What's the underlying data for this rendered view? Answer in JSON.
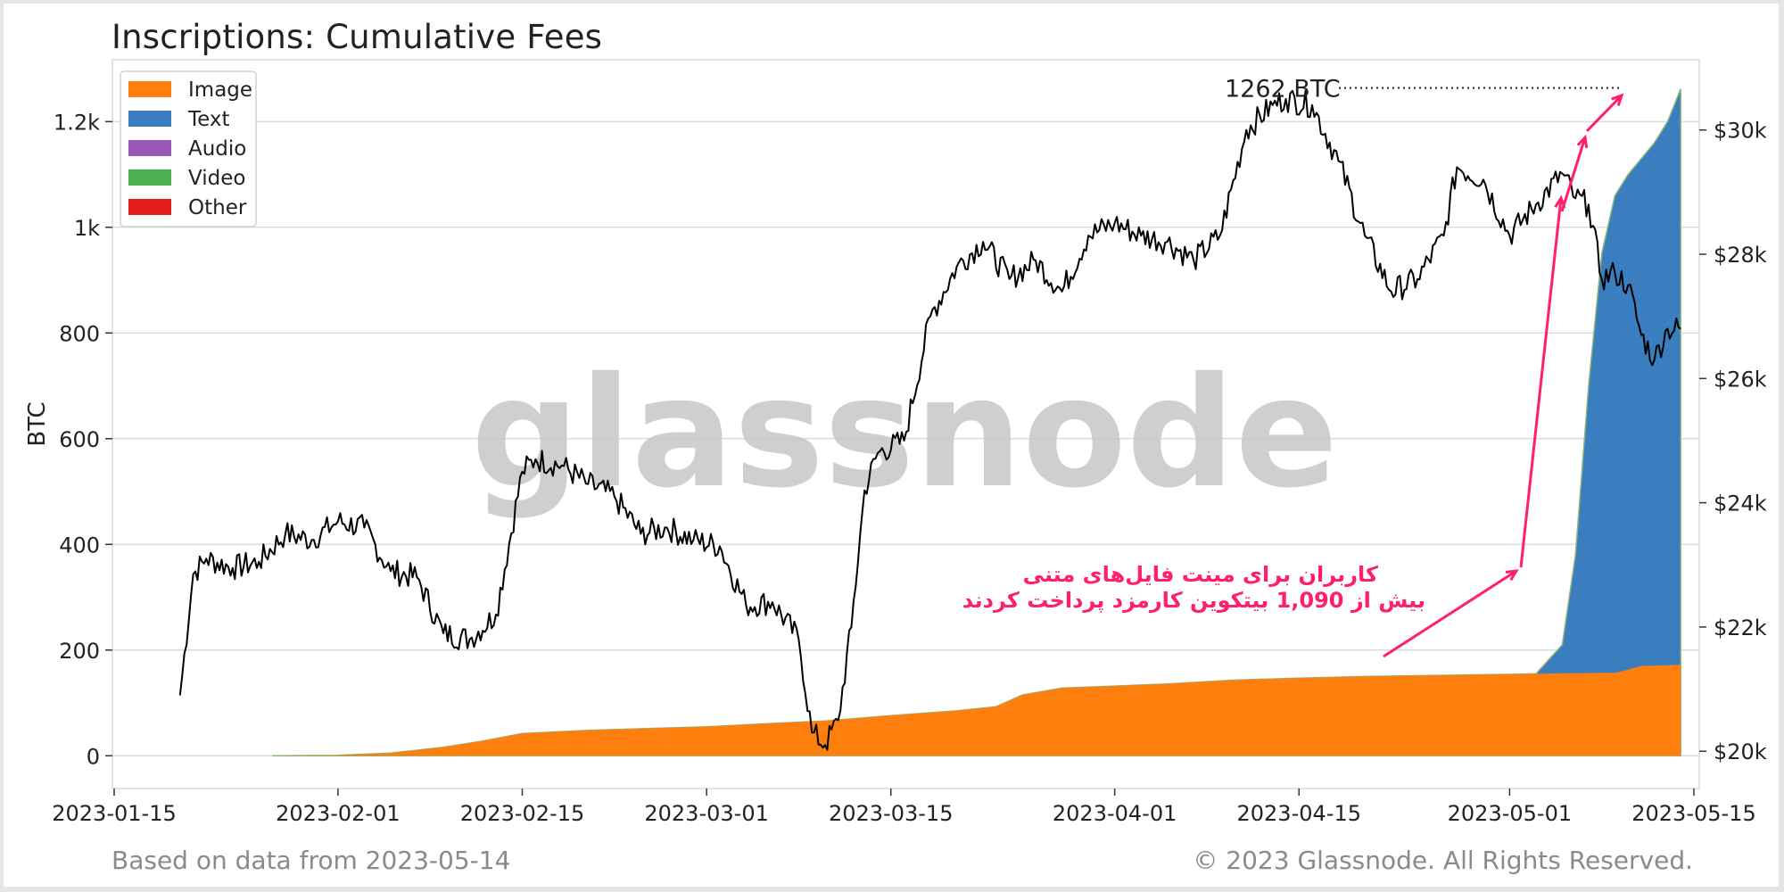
{
  "header": {
    "title": "Inscriptions: Cumulative Fees"
  },
  "footer": {
    "left": "Based on data from 2023-05-14",
    "right": "© 2023 Glassnode. All Rights Reserved."
  },
  "watermark": "glassnode",
  "chart_data": {
    "type": "area",
    "title": "Inscriptions: Cumulative Fees",
    "ylabel": "BTC",
    "ylabel_right": "",
    "ylim": [
      -62,
      1317
    ],
    "ylim_right": [
      19400,
      31130
    ],
    "xlim": [
      "2023-01-15",
      "2023-05-15"
    ],
    "yticks": [
      0,
      200,
      400,
      600,
      800,
      1000,
      1200
    ],
    "yticks_labels": [
      "0",
      "200",
      "400",
      "600",
      "800",
      "1k",
      "1.2k"
    ],
    "yticks_right": [
      20000,
      22000,
      24000,
      26000,
      28000,
      30000
    ],
    "yticks_right_labels": [
      "$20k",
      "$22k",
      "$24k",
      "$26k",
      "$28k",
      "$30k"
    ],
    "xticks": [
      "2023-01-15",
      "2023-02-01",
      "2023-02-15",
      "2023-03-01",
      "2023-03-15",
      "2023-04-01",
      "2023-04-15",
      "2023-05-01",
      "2023-05-15"
    ],
    "grid": "horizontal",
    "legend_position": "top-left",
    "legend": [
      {
        "name": "Image",
        "color": "#ff7f0e"
      },
      {
        "name": "Text",
        "color": "#3a7ebf"
      },
      {
        "name": "Audio",
        "color": "#9b59b6"
      },
      {
        "name": "Video",
        "color": "#4caf50"
      },
      {
        "name": "Other",
        "color": "#e41a1c"
      }
    ],
    "series": [
      {
        "name": "Image",
        "color": "#ff7f0e",
        "x": [
          "2023-01-27",
          "2023-02-01",
          "2023-02-05",
          "2023-02-09",
          "2023-02-12",
          "2023-02-15",
          "2023-02-20",
          "2023-02-25",
          "2023-03-01",
          "2023-03-05",
          "2023-03-10",
          "2023-03-15",
          "2023-03-20",
          "2023-03-23",
          "2023-03-25",
          "2023-03-28",
          "2023-04-01",
          "2023-04-05",
          "2023-04-10",
          "2023-04-15",
          "2023-04-20",
          "2023-04-25",
          "2023-05-01",
          "2023-05-05",
          "2023-05-09",
          "2023-05-10",
          "2023-05-11",
          "2023-05-14"
        ],
        "values": [
          0,
          1,
          5,
          16,
          28,
          42,
          48,
          52,
          55,
          60,
          66,
          76,
          85,
          93,
          115,
          128,
          132,
          136,
          143,
          147,
          150,
          152,
          154,
          156,
          157,
          163,
          170,
          172
        ]
      },
      {
        "name": "Text",
        "color": "#3a7ebf",
        "x": [
          "2023-01-27",
          "2023-02-01",
          "2023-02-05",
          "2023-02-09",
          "2023-02-12",
          "2023-02-15",
          "2023-02-20",
          "2023-02-25",
          "2023-03-01",
          "2023-03-05",
          "2023-03-10",
          "2023-03-15",
          "2023-03-20",
          "2023-03-23",
          "2023-03-25",
          "2023-03-28",
          "2023-04-01",
          "2023-04-05",
          "2023-04-10",
          "2023-04-15",
          "2023-04-20",
          "2023-04-25",
          "2023-04-28",
          "2023-05-01",
          "2023-05-03",
          "2023-05-05",
          "2023-05-06",
          "2023-05-07",
          "2023-05-08",
          "2023-05-09",
          "2023-05-10",
          "2023-05-11",
          "2023-05-12",
          "2023-05-13",
          "2023-05-14"
        ],
        "values": [
          0,
          0,
          0,
          1,
          2,
          3,
          4,
          5,
          6,
          7,
          8,
          10,
          12,
          13,
          12,
          14,
          14,
          16,
          19,
          20,
          22,
          25,
          32,
          50,
          100,
          210,
          380,
          700,
          950,
          1060,
          1100,
          1130,
          1160,
          1200,
          1262
        ]
      },
      {
        "name": "Audio",
        "color": "#9b59b6",
        "x": [],
        "values": []
      },
      {
        "name": "Video",
        "color": "#4caf50",
        "x": [],
        "values": []
      },
      {
        "name": "Other",
        "color": "#e41a1c",
        "x": [],
        "values": []
      },
      {
        "name": "Price",
        "axis": "right",
        "color": "#000000",
        "x": [
          "2023-01-20",
          "2023-01-21",
          "2023-01-22",
          "2023-01-24",
          "2023-01-26",
          "2023-01-28",
          "2023-01-30",
          "2023-02-01",
          "2023-02-03",
          "2023-02-05",
          "2023-02-07",
          "2023-02-09",
          "2023-02-11",
          "2023-02-13",
          "2023-02-15",
          "2023-02-16",
          "2023-02-18",
          "2023-02-20",
          "2023-02-22",
          "2023-02-24",
          "2023-02-26",
          "2023-02-28",
          "2023-03-02",
          "2023-03-04",
          "2023-03-06",
          "2023-03-08",
          "2023-03-09",
          "2023-03-10",
          "2023-03-11",
          "2023-03-12",
          "2023-03-13",
          "2023-03-14",
          "2023-03-16",
          "2023-03-18",
          "2023-03-20",
          "2023-03-22",
          "2023-03-24",
          "2023-03-26",
          "2023-03-28",
          "2023-03-30",
          "2023-04-01",
          "2023-04-03",
          "2023-04-05",
          "2023-04-07",
          "2023-04-09",
          "2023-04-11",
          "2023-04-13",
          "2023-04-14",
          "2023-04-16",
          "2023-04-18",
          "2023-04-20",
          "2023-04-22",
          "2023-04-24",
          "2023-04-26",
          "2023-04-27",
          "2023-04-29",
          "2023-05-01",
          "2023-05-03",
          "2023-05-05",
          "2023-05-06",
          "2023-05-07",
          "2023-05-08",
          "2023-05-09",
          "2023-05-10",
          "2023-05-11",
          "2023-05-12",
          "2023-05-13",
          "2023-05-14"
        ],
        "values": [
          20900,
          22850,
          23100,
          22950,
          23050,
          23500,
          23400,
          23700,
          23600,
          22900,
          22800,
          21900,
          21800,
          22200,
          24500,
          24700,
          24600,
          24300,
          24100,
          23500,
          23600,
          23400,
          23300,
          22350,
          22400,
          21800,
          20300,
          20100,
          20500,
          22000,
          24200,
          24800,
          25000,
          27000,
          27800,
          28200,
          27600,
          27900,
          27400,
          28300,
          28500,
          28300,
          28200,
          27900,
          28300,
          30000,
          30400,
          30500,
          30400,
          29500,
          28300,
          27400,
          27600,
          28300,
          29400,
          29200,
          28300,
          28800,
          29300,
          28900,
          28800,
          27600,
          27700,
          27500,
          26700,
          26300,
          26800,
          26800
        ]
      }
    ],
    "annotations": [
      {
        "text": "1262 BTC"
      },
      {
        "text": "کاربران برای مینت فایل‌های متنی"
      },
      {
        "text": "بیش از  1,090  بیتکوین کارمزد پرداخت کردند"
      }
    ]
  }
}
